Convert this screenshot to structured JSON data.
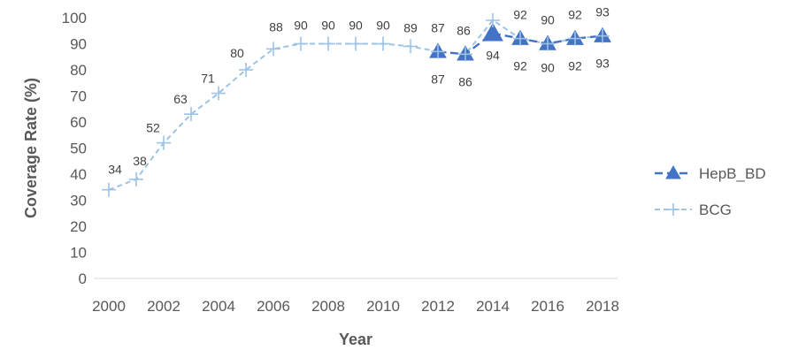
{
  "chart_data": {
    "type": "line",
    "title": "",
    "xlabel": "Year",
    "ylabel": "Coverage Rate (%)",
    "ylim": [
      0,
      100
    ],
    "yticks": [
      0,
      10,
      20,
      30,
      40,
      50,
      60,
      70,
      80,
      90,
      100
    ],
    "xlim": [
      2000,
      2018
    ],
    "xticks": [
      2000,
      2002,
      2004,
      2006,
      2008,
      2010,
      2012,
      2014,
      2016,
      2018
    ],
    "grid": false,
    "legend_position": "right",
    "series": [
      {
        "name": "HepB_BD",
        "color": "#4472C4",
        "line_style": "dashed",
        "marker": "triangle",
        "x": [
          2012,
          2013,
          2014,
          2015,
          2016,
          2017,
          2018
        ],
        "y": [
          87,
          86,
          94,
          92,
          90,
          92,
          93
        ],
        "labels": [
          "87",
          "86",
          "94",
          "92",
          "90",
          "92",
          "93"
        ]
      },
      {
        "name": "BCG",
        "color": "#9DC3E6",
        "line_style": "dashed",
        "marker": "plus",
        "x": [
          2000,
          2001,
          2002,
          2003,
          2004,
          2005,
          2006,
          2007,
          2008,
          2009,
          2010,
          2011,
          2012,
          2013,
          2014,
          2015,
          2016,
          2017,
          2018
        ],
        "y": [
          34,
          38,
          52,
          63,
          71,
          80,
          88,
          90,
          90,
          90,
          90,
          89,
          87,
          86,
          99,
          92,
          90,
          92,
          93
        ],
        "labels": [
          "34",
          "38",
          "52",
          "63",
          "71",
          "80",
          "88",
          "90",
          "90",
          "90",
          "90",
          "89",
          "87",
          "86",
          "",
          "92",
          "90",
          "92",
          "93"
        ]
      }
    ]
  }
}
